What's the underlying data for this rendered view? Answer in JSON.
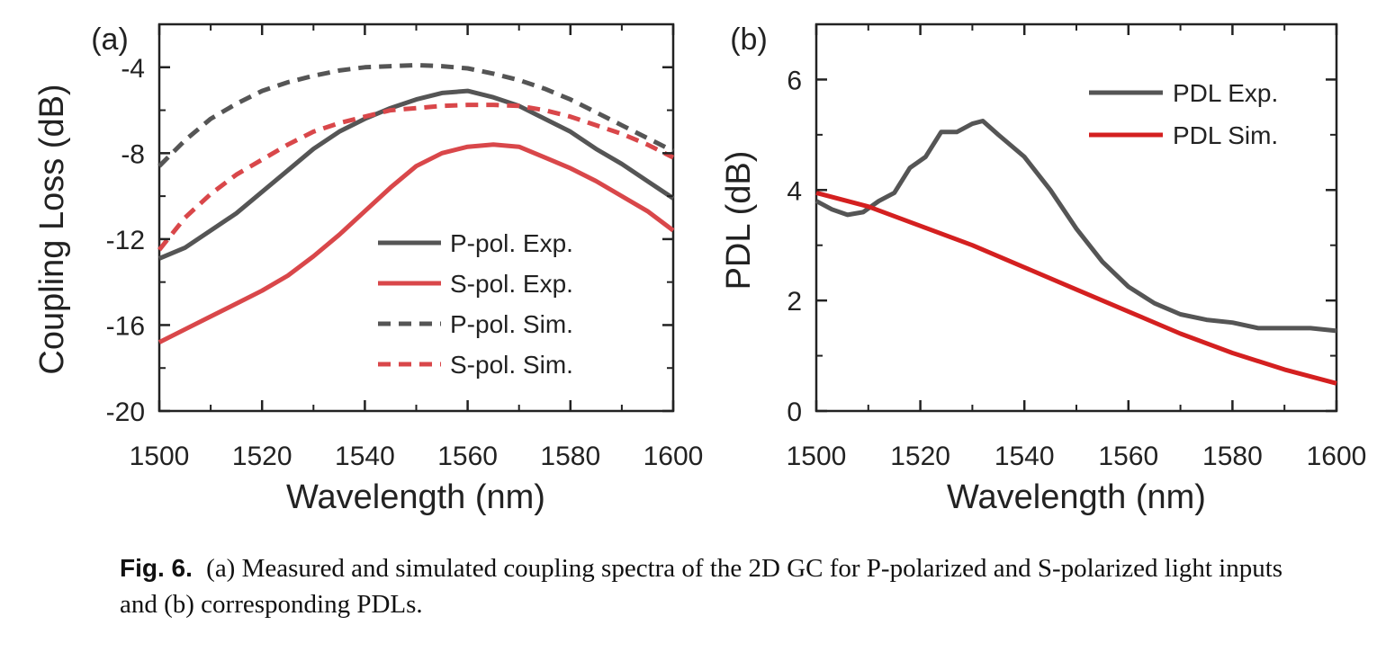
{
  "chart_data": [
    {
      "type": "line",
      "panel_label": "(a)",
      "xlabel": "Wavelength (nm)",
      "ylabel": "Coupling Loss (dB)",
      "xlim": [
        1500,
        1600
      ],
      "ylim": [
        -20,
        -2
      ],
      "xticks": [
        1500,
        1520,
        1540,
        1560,
        1580,
        1600
      ],
      "yticks": [
        -20,
        -16,
        -12,
        -8,
        -4
      ],
      "legend_position": "lower-right",
      "series": [
        {
          "name": "P-pol. Exp.",
          "color": "#555555",
          "style": "solid",
          "x": [
            1500,
            1505,
            1510,
            1515,
            1520,
            1525,
            1530,
            1535,
            1540,
            1545,
            1550,
            1555,
            1560,
            1565,
            1570,
            1575,
            1580,
            1585,
            1590,
            1595,
            1600
          ],
          "y": [
            -12.9,
            -12.4,
            -11.6,
            -10.8,
            -9.8,
            -8.8,
            -7.8,
            -7.0,
            -6.4,
            -5.9,
            -5.5,
            -5.2,
            -5.1,
            -5.4,
            -5.8,
            -6.4,
            -7.0,
            -7.8,
            -8.5,
            -9.3,
            -10.1
          ]
        },
        {
          "name": "S-pol. Exp.",
          "color": "#d9474a",
          "style": "solid",
          "x": [
            1500,
            1505,
            1510,
            1515,
            1520,
            1525,
            1530,
            1535,
            1540,
            1545,
            1550,
            1555,
            1560,
            1565,
            1570,
            1575,
            1580,
            1585,
            1590,
            1595,
            1600
          ],
          "y": [
            -16.8,
            -16.2,
            -15.6,
            -15.0,
            -14.4,
            -13.7,
            -12.8,
            -11.8,
            -10.7,
            -9.6,
            -8.6,
            -8.0,
            -7.7,
            -7.6,
            -7.7,
            -8.2,
            -8.7,
            -9.3,
            -10.0,
            -10.7,
            -11.6
          ]
        },
        {
          "name": "P-pol. Sim.",
          "color": "#555555",
          "style": "dashed",
          "x": [
            1500,
            1505,
            1510,
            1515,
            1520,
            1525,
            1530,
            1535,
            1540,
            1545,
            1550,
            1555,
            1560,
            1565,
            1570,
            1575,
            1580,
            1585,
            1590,
            1595,
            1600
          ],
          "y": [
            -8.6,
            -7.4,
            -6.4,
            -5.7,
            -5.1,
            -4.7,
            -4.4,
            -4.15,
            -4.0,
            -3.95,
            -3.9,
            -3.95,
            -4.05,
            -4.3,
            -4.6,
            -5.0,
            -5.5,
            -6.1,
            -6.7,
            -7.3,
            -7.9
          ]
        },
        {
          "name": "S-pol. Sim.",
          "color": "#d9474a",
          "style": "dashed",
          "x": [
            1500,
            1505,
            1510,
            1515,
            1520,
            1525,
            1530,
            1535,
            1540,
            1545,
            1550,
            1555,
            1560,
            1565,
            1570,
            1575,
            1580,
            1585,
            1590,
            1595,
            1600
          ],
          "y": [
            -12.5,
            -11.0,
            -9.9,
            -9.0,
            -8.3,
            -7.6,
            -7.0,
            -6.6,
            -6.3,
            -6.0,
            -5.9,
            -5.8,
            -5.75,
            -5.75,
            -5.8,
            -6.0,
            -6.3,
            -6.7,
            -7.1,
            -7.6,
            -8.2
          ]
        }
      ]
    },
    {
      "type": "line",
      "panel_label": "(b)",
      "xlabel": "Wavelength (nm)",
      "ylabel": "PDL (dB)",
      "xlim": [
        1500,
        1600
      ],
      "ylim": [
        0,
        7
      ],
      "xticks": [
        1500,
        1520,
        1540,
        1560,
        1580,
        1600
      ],
      "yticks": [
        0,
        2,
        4,
        6
      ],
      "legend_position": "top-right",
      "series": [
        {
          "name": "PDL Exp.",
          "color": "#555555",
          "style": "solid",
          "x": [
            1500,
            1503,
            1506,
            1509,
            1512,
            1515,
            1518,
            1521,
            1524,
            1527,
            1530,
            1532,
            1535,
            1540,
            1545,
            1550,
            1555,
            1560,
            1565,
            1570,
            1575,
            1580,
            1585,
            1590,
            1595,
            1600
          ],
          "y": [
            3.8,
            3.65,
            3.55,
            3.6,
            3.8,
            3.95,
            4.4,
            4.6,
            5.05,
            5.05,
            5.2,
            5.25,
            5.0,
            4.6,
            4.0,
            3.3,
            2.7,
            2.25,
            1.95,
            1.75,
            1.65,
            1.6,
            1.5,
            1.5,
            1.5,
            1.45
          ]
        },
        {
          "name": "PDL Sim.",
          "color": "#d42020",
          "style": "solid",
          "x": [
            1500,
            1510,
            1520,
            1530,
            1540,
            1550,
            1560,
            1570,
            1580,
            1590,
            1600
          ],
          "y": [
            3.95,
            3.7,
            3.35,
            3.0,
            2.6,
            2.2,
            1.8,
            1.4,
            1.05,
            0.75,
            0.5
          ]
        }
      ]
    }
  ],
  "caption": {
    "label": "Fig. 6.",
    "text": "(a) Measured and simulated coupling spectra of the 2D GC for P-polarized and S-polarized light inputs and (b) corresponding PDLs."
  }
}
